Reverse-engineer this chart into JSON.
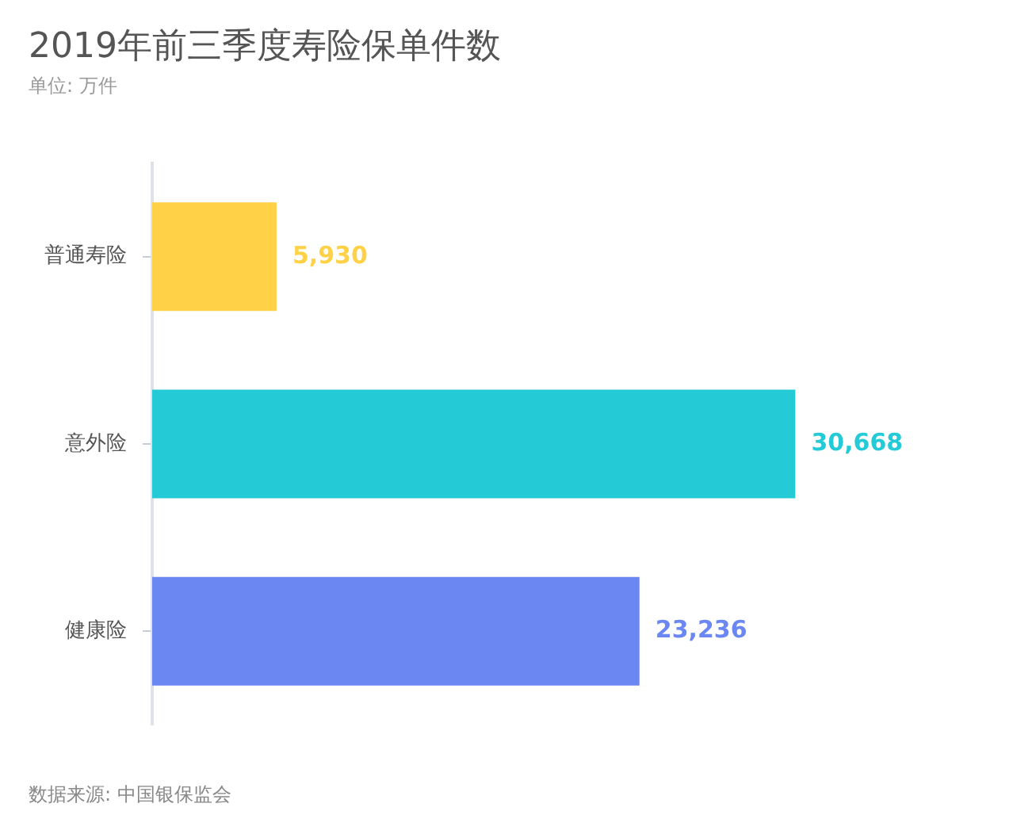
{
  "chart_data": {
    "type": "bar",
    "orientation": "horizontal",
    "title": "2019年前三季度寿险保单件数",
    "subtitle": "单位: 万件",
    "categories": [
      "普通寿险",
      "意外险",
      "健康险"
    ],
    "values": [
      5930,
      30668,
      23236
    ],
    "value_labels": [
      "5,930",
      "30,668",
      "23,236"
    ],
    "colors": [
      "#ffd147",
      "#24cbd6",
      "#6b87f2"
    ],
    "tick_labels": "y",
    "annotations": [
      "数据来源: 中国银保监会"
    ]
  }
}
